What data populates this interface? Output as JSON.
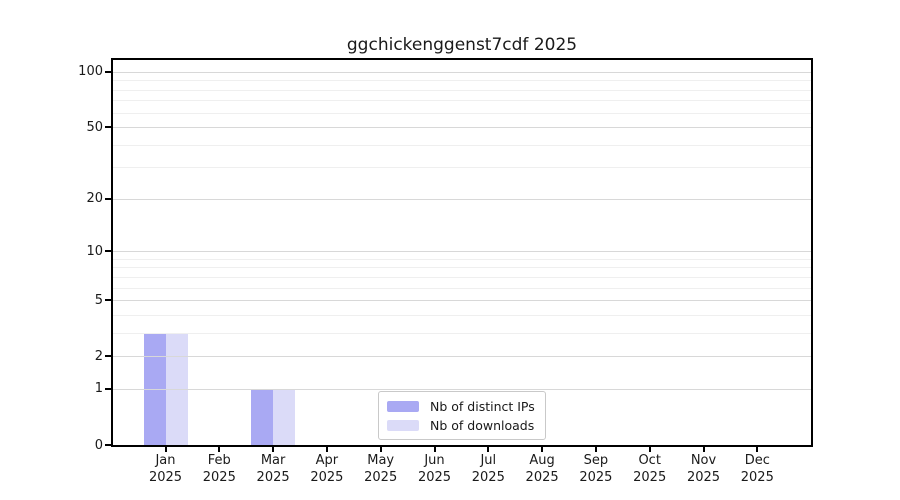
{
  "chart_data": {
    "type": "bar",
    "title": "ggchickenggenst7cdf 2025",
    "categories": [
      "Jan",
      "Feb",
      "Mar",
      "Apr",
      "May",
      "Jun",
      "Jul",
      "Aug",
      "Sep",
      "Oct",
      "Nov",
      "Dec"
    ],
    "x_sublabel_year": "2025",
    "series": [
      {
        "name": "Nb of distinct IPs",
        "color": "#a9a9f3",
        "values": [
          3,
          0,
          1,
          0,
          0,
          0,
          0,
          0,
          0,
          0,
          0,
          0
        ]
      },
      {
        "name": "Nb of downloads",
        "color": "#dbdbf8",
        "values": [
          3,
          0,
          1,
          0,
          0,
          0,
          0,
          0,
          0,
          0,
          0,
          0
        ]
      }
    ],
    "xlabel": "",
    "ylabel": "",
    "yscale": "log1p",
    "ylim": [
      0,
      116
    ],
    "y_ticks": [
      0,
      1,
      2,
      5,
      10,
      20,
      50,
      100
    ],
    "y_minor_gridlines": [
      3,
      4,
      6,
      7,
      8,
      9,
      30,
      40,
      60,
      70,
      80,
      90
    ],
    "grid": "horizontal",
    "grid_above_bars": true,
    "legend_position": "lower center inside",
    "colors": {
      "background": "#ffffff",
      "axis": "#000000",
      "text": "#1a1a1a",
      "grid_major": "#d8d8d8",
      "grid_minor": "#efefef"
    }
  }
}
